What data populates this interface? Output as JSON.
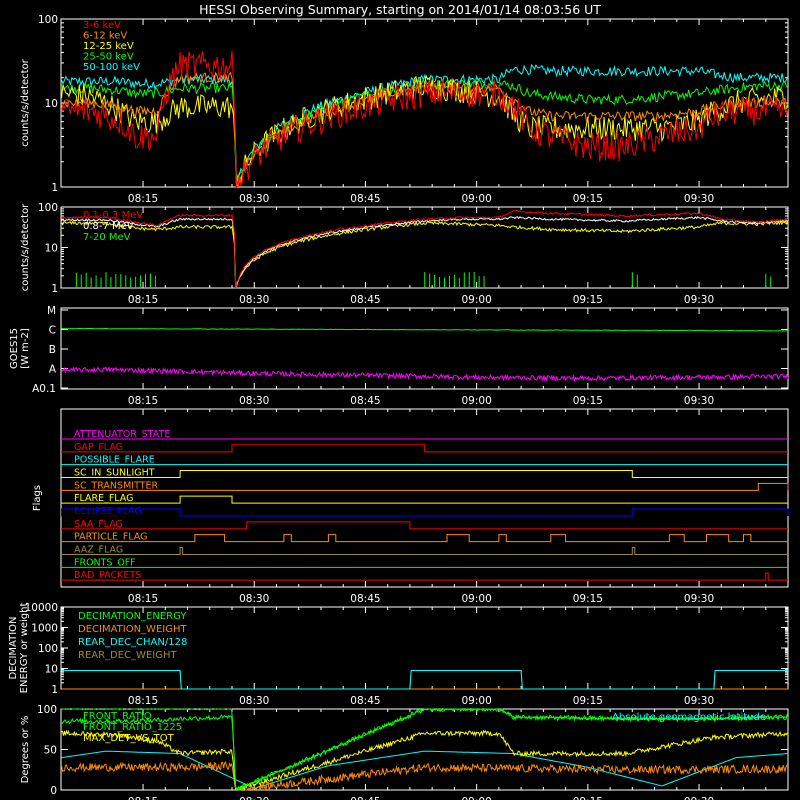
{
  "title": "HESSI Observing Summary, starting on 2014/01/14 08:03:56 UT",
  "time_ticks": [
    "08:15",
    "08:30",
    "08:45",
    "09:00",
    "09:15",
    "09:30"
  ],
  "colors": {
    "red": "#ff0000",
    "orange": "#ff8c00",
    "yellow": "#ffff00",
    "green": "#00ff00",
    "cyan": "#00ffff",
    "magenta": "#ff00ff",
    "blue": "#0000ff",
    "olive": "#9b8b3c",
    "white": "#ffffff"
  },
  "chart_data": [
    {
      "id": "lo",
      "type": "line",
      "ylabel": "counts/s/detector",
      "yscale": "log",
      "ylim": [
        1,
        100
      ],
      "yticks": [
        "1",
        "10",
        "100"
      ],
      "xlim": [
        "08:03:56",
        "09:42:00"
      ],
      "series": [
        {
          "name": "3-6 keV",
          "color": "red",
          "x": [
            "08:04",
            "08:08",
            "08:12",
            "08:14",
            "08:17",
            "08:20",
            "08:21",
            "08:27",
            "08:27:30",
            "08:53",
            "08:58",
            "09:03",
            "09:05",
            "09:07",
            "09:10",
            "09:15",
            "09:20",
            "09:25",
            "09:30",
            "09:32",
            "09:35",
            "09:38",
            "09:42"
          ],
          "y": [
            8,
            8,
            6,
            4,
            4,
            28,
            28,
            28,
            1,
            13,
            13,
            13,
            9,
            5,
            4,
            3,
            3,
            4,
            5,
            7,
            8,
            8,
            8
          ]
        },
        {
          "name": "6-12 keV",
          "color": "orange",
          "x": [
            "08:04",
            "08:08",
            "08:12",
            "08:14",
            "08:17",
            "08:20",
            "08:21",
            "08:27",
            "08:27:30",
            "08:53",
            "08:58",
            "09:03",
            "09:05",
            "09:07",
            "09:10",
            "09:15",
            "09:20",
            "09:25",
            "09:30",
            "09:32",
            "09:35",
            "09:38",
            "09:42"
          ],
          "y": [
            10,
            10,
            9,
            8,
            8,
            20,
            20,
            20,
            1,
            15,
            15,
            15,
            11,
            8,
            7,
            7,
            7,
            7,
            8,
            9,
            10,
            10,
            10
          ]
        },
        {
          "name": "12-25 keV",
          "color": "yellow",
          "x": [
            "08:04",
            "08:08",
            "08:12",
            "08:14",
            "08:17",
            "08:20",
            "08:21",
            "08:27",
            "08:27:30",
            "08:53",
            "08:58",
            "09:03",
            "09:05",
            "09:07",
            "09:10",
            "09:15",
            "09:20",
            "09:25",
            "09:30",
            "09:32",
            "09:35",
            "09:38",
            "09:42"
          ],
          "y": [
            13,
            12,
            8,
            6,
            6,
            9,
            9,
            9,
            1,
            16,
            14,
            12,
            7,
            5,
            5,
            5,
            5,
            5,
            6,
            8,
            10,
            11,
            12
          ]
        },
        {
          "name": "25-50 keV",
          "color": "green",
          "x": [
            "08:04",
            "08:08",
            "08:12",
            "08:14",
            "08:17",
            "08:20",
            "08:21",
            "08:27",
            "08:27:30",
            "08:53",
            "08:58",
            "09:03",
            "09:05",
            "09:07",
            "09:10",
            "09:15",
            "09:20",
            "09:25",
            "09:30",
            "09:32",
            "09:35",
            "09:38",
            "09:42"
          ],
          "y": [
            15,
            15,
            14,
            13,
            13,
            15,
            15,
            15,
            1,
            17,
            17,
            17,
            16,
            13,
            12,
            11,
            11,
            12,
            13,
            14,
            15,
            16,
            16
          ]
        },
        {
          "name": "50-100 keV",
          "color": "cyan",
          "x": [
            "08:04",
            "08:08",
            "08:12",
            "08:14",
            "08:17",
            "08:20",
            "08:21",
            "08:27",
            "08:27:30",
            "08:53",
            "08:58",
            "09:03",
            "09:05",
            "09:07",
            "09:10",
            "09:15",
            "09:20",
            "09:25",
            "09:30",
            "09:32",
            "09:35",
            "09:38",
            "09:42"
          ],
          "y": [
            18,
            18,
            18,
            17,
            17,
            19,
            19,
            19,
            1,
            19,
            19,
            19,
            25,
            25,
            24,
            24,
            24,
            24,
            24,
            22,
            20,
            20,
            20
          ]
        }
      ]
    },
    {
      "id": "hi",
      "type": "line",
      "ylabel": "counts/s/detector",
      "yscale": "log",
      "ylim": [
        1,
        100
      ],
      "yticks": [
        "1",
        "10",
        "100"
      ],
      "series": [
        {
          "name": "0.1-0.3 MeV",
          "color": "red",
          "x": [
            "08:04",
            "08:10",
            "08:14",
            "08:17",
            "08:20",
            "08:27",
            "08:27:30",
            "08:53",
            "08:58",
            "09:03",
            "09:05",
            "09:10",
            "09:20",
            "09:30",
            "09:33",
            "09:38",
            "09:42"
          ],
          "y": [
            55,
            55,
            42,
            35,
            62,
            62,
            1,
            50,
            55,
            55,
            78,
            70,
            60,
            70,
            50,
            42,
            50
          ]
        },
        {
          "name": "0.8-7 MeV",
          "color": "white",
          "x": [
            "08:04",
            "08:10",
            "08:14",
            "08:17",
            "08:20",
            "08:27",
            "08:27:30",
            "08:53",
            "08:58",
            "09:03",
            "09:05",
            "09:10",
            "09:20",
            "09:30",
            "09:33",
            "09:38",
            "09:42"
          ],
          "y": [
            48,
            48,
            38,
            32,
            50,
            50,
            1,
            45,
            50,
            50,
            55,
            50,
            45,
            55,
            45,
            40,
            45
          ]
        },
        {
          "name": "7-20 MeV",
          "color": "green",
          "x": [
            "08:04",
            "08:10",
            "08:14",
            "08:17",
            "08:20",
            "08:27",
            "08:27:30",
            "08:53",
            "08:58",
            "09:03",
            "09:05",
            "09:10",
            "09:20",
            "09:30",
            "09:33",
            "09:38",
            "09:42"
          ],
          "y": [
            1,
            1,
            1,
            1,
            1,
            1,
            1,
            1,
            1,
            1,
            1,
            1,
            1,
            1,
            1,
            1,
            1
          ]
        }
      ],
      "extra_series": {
        "color": "yellow",
        "x": [
          "08:04",
          "08:10",
          "08:14",
          "08:17",
          "08:20",
          "08:27",
          "08:27:30",
          "08:53",
          "08:58",
          "09:03",
          "09:05",
          "09:10",
          "09:20",
          "09:30",
          "09:33",
          "09:38",
          "09:42"
        ],
        "y": [
          40,
          40,
          30,
          28,
          32,
          32,
          1,
          40,
          38,
          35,
          32,
          28,
          25,
          32,
          40,
          38,
          42
        ]
      }
    },
    {
      "id": "goes",
      "type": "line",
      "ylabel": "GOES15",
      "yunit": "[W m-2]",
      "yticks": [
        "A0.1",
        "A",
        "B",
        "C",
        "M"
      ],
      "series": [
        {
          "name": "",
          "color": "green",
          "x": [
            "08:04",
            "08:30",
            "09:00",
            "09:30",
            "09:42"
          ],
          "y": [
            2.05,
            2.02,
            1.98,
            1.95,
            1.93
          ]
        },
        {
          "name": "",
          "color": "magenta",
          "x": [
            "08:04",
            "08:10",
            "08:20",
            "08:30",
            "08:45",
            "09:00",
            "09:15",
            "09:30",
            "09:42"
          ],
          "y": [
            -0.1,
            -0.05,
            -0.15,
            -0.25,
            -0.35,
            -0.45,
            -0.5,
            -0.45,
            -0.4
          ]
        }
      ]
    },
    {
      "id": "flags",
      "type": "line",
      "ylabel": "Flags",
      "flags": [
        {
          "name": "ATTENUATOR_STATE",
          "color": "magenta",
          "high": []
        },
        {
          "name": "GAP_FLAG",
          "color": "red",
          "high": [
            [
              "08:27",
              "08:53"
            ]
          ]
        },
        {
          "name": "POSSIBLE_FLARE",
          "color": "cyan",
          "high": []
        },
        {
          "name": "SC_IN_SUNLIGHT",
          "color": "yellow",
          "high": [
            [
              "08:20",
              "09:21"
            ]
          ]
        },
        {
          "name": "SC_TRANSMITTER",
          "color": "orange",
          "high": [
            [
              "09:38",
              "09:42"
            ]
          ]
        },
        {
          "name": "FLARE_FLAG",
          "color": "yellow",
          "high": [
            [
              "08:20",
              "08:27"
            ]
          ]
        },
        {
          "name": "ECLIPSE_FLAG",
          "color": "blue",
          "high": [
            [
              "08:04",
              "08:20"
            ],
            [
              "09:21",
              "09:42"
            ]
          ]
        },
        {
          "name": "SAA_FLAG",
          "color": "red",
          "high": [
            [
              "08:29",
              "08:51"
            ]
          ]
        },
        {
          "name": "PARTICLE_FLAG",
          "color": "orange",
          "high": [
            [
              "08:22",
              "08:26"
            ],
            [
              "08:34",
              "08:35"
            ],
            [
              "08:40",
              "08:41"
            ],
            [
              "08:56",
              "08:59"
            ],
            [
              "09:03",
              "09:04"
            ],
            [
              "09:10",
              "09:12"
            ],
            [
              "09:26",
              "09:28"
            ],
            [
              "09:31",
              "09:34"
            ],
            [
              "09:36",
              "09:37"
            ]
          ]
        },
        {
          "name": "AAZ_FLAG",
          "color": "olive",
          "high": [
            [
              "08:20",
              "08:20:20"
            ],
            [
              "09:21",
              "09:21:20"
            ]
          ]
        },
        {
          "name": "FRONTS_OFF",
          "color": "green",
          "high": []
        },
        {
          "name": "BAD_PACKETS",
          "color": "red",
          "high": [
            [
              "09:39",
              "09:39:20"
            ]
          ]
        }
      ]
    },
    {
      "id": "dec",
      "type": "line",
      "ylabel": "DECIMATION ENERGY or weight",
      "yscale": "log",
      "ylim": [
        1,
        10000
      ],
      "yticks": [
        "1",
        "10",
        "100",
        "1000",
        "10000"
      ],
      "series": [
        {
          "name": "DECIMATION_ENERGY",
          "color": "green",
          "x": [
            "08:04",
            "09:42"
          ],
          "y": [
            1,
            1
          ]
        },
        {
          "name": "DECIMATION_WEIGHT",
          "color": "orange",
          "x": [
            "08:04",
            "09:42"
          ],
          "y": [
            1,
            1
          ]
        },
        {
          "name": "REAR_DEC_CHAN/128",
          "color": "cyan",
          "x": [
            "08:04",
            "08:20",
            "08:20:10",
            "08:51",
            "08:51:10",
            "09:06",
            "09:06:10",
            "09:32",
            "09:32:10",
            "09:42"
          ],
          "y": [
            8,
            8,
            1,
            1,
            8,
            8,
            1,
            1,
            8,
            8
          ]
        },
        {
          "name": "REAR_DEC_WEIGHT",
          "color": "olive",
          "x": [
            "08:04",
            "08:20",
            "08:20:10",
            "08:51",
            "08:51:10",
            "09:06",
            "09:06:10",
            "09:32",
            "09:32:10",
            "09:42"
          ],
          "y": [
            8,
            8,
            1,
            1,
            8,
            8,
            1,
            1,
            8,
            8
          ]
        }
      ]
    },
    {
      "id": "ratio",
      "type": "line",
      "ylabel": "Degrees or %",
      "ylim": [
        0,
        100
      ],
      "yticks": [
        "0",
        "50",
        "100"
      ],
      "annotation": "Absolute geomagnetic latitude",
      "series": [
        {
          "name": "FRONT_RATIO",
          "color": "green",
          "x": [
            "08:04",
            "08:20",
            "08:27",
            "08:27:30",
            "08:53",
            "09:03",
            "09:05",
            "09:20",
            "09:30",
            "09:42"
          ],
          "y": [
            100,
            100,
            100,
            0,
            100,
            100,
            90,
            88,
            88,
            90
          ]
        },
        {
          "name": "FRONT_RATIO_1225",
          "color": "green",
          "x": [
            "08:04",
            "08:12",
            "08:17",
            "08:20",
            "08:27",
            "08:27:30",
            "08:53",
            "09:03",
            "09:05",
            "09:20",
            "09:30",
            "09:42"
          ],
          "y": [
            85,
            85,
            86,
            88,
            90,
            0,
            100,
            100,
            90,
            88,
            88,
            90
          ]
        },
        {
          "name": "MAX_DET_VS_TOT",
          "color": "yellow",
          "x": [
            "08:04",
            "08:12",
            "08:17",
            "08:20",
            "08:27",
            "08:27:30",
            "08:53",
            "09:03",
            "09:05",
            "09:20",
            "09:32",
            "09:42"
          ],
          "y": [
            70,
            68,
            60,
            45,
            48,
            0,
            70,
            70,
            45,
            45,
            65,
            70
          ]
        },
        {
          "name": "",
          "color": "orange",
          "x": [
            "08:04",
            "08:20",
            "08:27",
            "08:27:30",
            "08:53",
            "09:20",
            "09:42"
          ],
          "y": [
            28,
            28,
            30,
            0,
            28,
            25,
            26
          ]
        },
        {
          "name": "",
          "color": "cyan",
          "x": [
            "08:04",
            "08:10",
            "08:20",
            "08:30",
            "08:40",
            "08:53",
            "09:05",
            "09:15",
            "09:25",
            "09:35",
            "09:42"
          ],
          "y": [
            40,
            48,
            45,
            2,
            30,
            48,
            45,
            28,
            5,
            40,
            45
          ]
        }
      ]
    }
  ]
}
